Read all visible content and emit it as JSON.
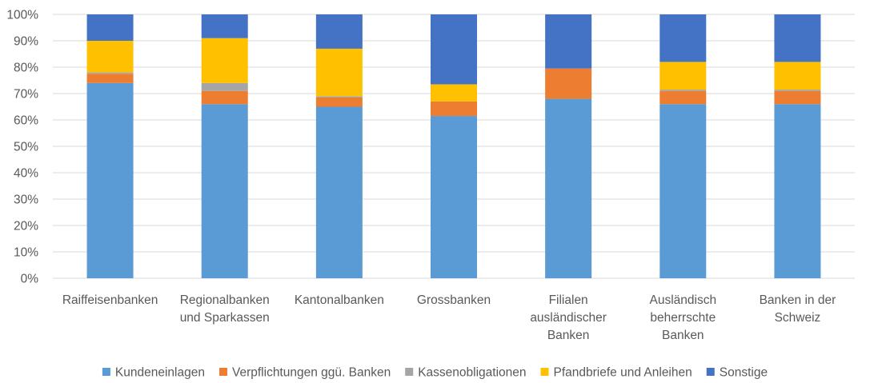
{
  "chart_data": {
    "type": "bar",
    "stacked": true,
    "normalized": true,
    "categories": [
      [
        "Raiffeisenbanken"
      ],
      [
        "Regionalbanken",
        "und Sparkassen"
      ],
      [
        "Kantonalbanken"
      ],
      [
        "Grossbanken"
      ],
      [
        "Filialen",
        "ausländischer",
        "Banken"
      ],
      [
        "Ausländisch",
        "beherrschte",
        "Banken"
      ],
      [
        "Banken in der",
        "Schweiz"
      ]
    ],
    "series": [
      {
        "name": "Kundeneinlagen",
        "color": "#5b9bd5",
        "values": [
          74,
          66,
          65,
          61.5,
          68,
          66,
          66
        ]
      },
      {
        "name": "Verpflichtungen ggü. Banken",
        "color": "#ed7d31",
        "values": [
          3.5,
          5,
          3.5,
          5.5,
          11.5,
          5,
          5
        ]
      },
      {
        "name": "Kassenobligationen",
        "color": "#a5a5a5",
        "values": [
          0.5,
          3,
          0.5,
          0,
          0,
          0.5,
          0.5
        ]
      },
      {
        "name": "Pfandbriefe und Anleihen",
        "color": "#ffc000",
        "values": [
          12,
          17,
          18,
          6.5,
          0,
          10.5,
          10.5
        ]
      },
      {
        "name": "Sonstige",
        "color": "#4472c4",
        "values": [
          10,
          9,
          13,
          26.5,
          20.5,
          18,
          18
        ]
      }
    ],
    "ylim": [
      0,
      100
    ],
    "yticks": [
      "0%",
      "10%",
      "20%",
      "30%",
      "40%",
      "50%",
      "60%",
      "70%",
      "80%",
      "90%",
      "100%"
    ],
    "grid": true,
    "legend_position": "bottom"
  }
}
